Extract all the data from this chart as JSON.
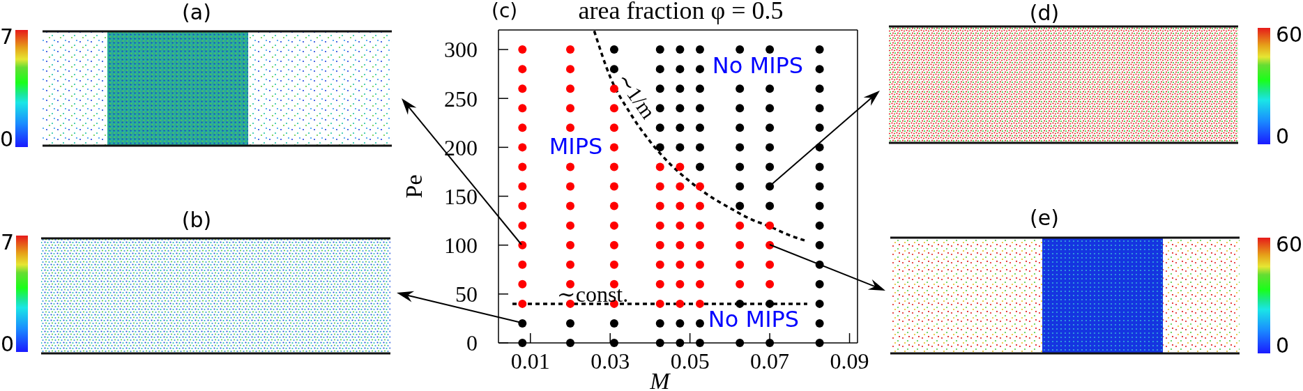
{
  "chart_data": [
    {
      "type": "other",
      "title": "(a)",
      "annotations": [
        "7",
        "0"
      ]
    },
    {
      "type": "other",
      "title": "(b)",
      "annotations": [
        "7",
        "0"
      ]
    },
    {
      "type": "scatter",
      "title": "area fraction φ = 0.5",
      "xlabel": "M",
      "ylabel": "Pe",
      "annotations": [
        "(c)",
        "MIPS",
        "No MIPS",
        "No MIPS",
        {
          "text": "∼const.",
          "x": 0.0256,
          "y": 40
        },
        {
          "text": "∼1/m",
          "x": 0.035,
          "y": 235
        }
      ],
      "xlim": [
        0.002,
        0.092
      ],
      "xticks": [
        0.01,
        0.03,
        0.05,
        0.07,
        0.09
      ],
      "ylim": [
        0,
        320
      ],
      "yticks": [
        0,
        50,
        100,
        150,
        200,
        250,
        300
      ],
      "marker": "circle",
      "series": [
        {
          "color": "#ff0000",
          "x": [
            0.008,
            0.008,
            0.008,
            0.008,
            0.008,
            0.008,
            0.008,
            0.008,
            0.008,
            0.008,
            0.008,
            0.008,
            0.008,
            0.008,
            0.02,
            0.02,
            0.02,
            0.02,
            0.02,
            0.02,
            0.02,
            0.02,
            0.02,
            0.02,
            0.02,
            0.02,
            0.02,
            0.031,
            0.031,
            0.031,
            0.031,
            0.031,
            0.031,
            0.031,
            0.031,
            0.031,
            0.031,
            0.031,
            0.031,
            0.0425,
            0.0425,
            0.0425,
            0.0425,
            0.0425,
            0.0425,
            0.0425,
            0.0425,
            0.0475,
            0.0475,
            0.0475,
            0.0475,
            0.0475,
            0.0475,
            0.0475,
            0.0475,
            0.0525,
            0.0525,
            0.0525,
            0.0525,
            0.0525,
            0.0525,
            0.0525,
            0.0625,
            0.0625,
            0.0625,
            0.0625,
            0.07,
            0.07,
            0.07,
            0.07
          ],
          "values": [
            40,
            60,
            80,
            100,
            120,
            140,
            160,
            180,
            200,
            220,
            240,
            260,
            280,
            300,
            40,
            60,
            80,
            100,
            120,
            140,
            160,
            180,
            220,
            240,
            260,
            280,
            300,
            40,
            60,
            80,
            100,
            120,
            140,
            160,
            180,
            200,
            220,
            240,
            260,
            40,
            60,
            80,
            100,
            120,
            140,
            160,
            180,
            40,
            60,
            80,
            100,
            120,
            140,
            160,
            180,
            40,
            60,
            80,
            100,
            120,
            140,
            160,
            60,
            80,
            100,
            120,
            60,
            80,
            100,
            120
          ]
        },
        {
          "color": "#000000",
          "x": [
            0.008,
            0.008,
            0.02,
            0.02,
            0.031,
            0.031,
            0.031,
            0.031,
            0.0425,
            0.0425,
            0.0425,
            0.0425,
            0.0425,
            0.0425,
            0.0425,
            0.0425,
            0.0475,
            0.0475,
            0.0475,
            0.0475,
            0.0475,
            0.0475,
            0.0475,
            0.0475,
            0.0525,
            0.0525,
            0.0525,
            0.0525,
            0.0525,
            0.0525,
            0.0525,
            0.0525,
            0.0525,
            0.0625,
            0.0625,
            0.0625,
            0.0625,
            0.0625,
            0.0625,
            0.0625,
            0.0625,
            0.0625,
            0.0625,
            0.07,
            0.07,
            0.07,
            0.07,
            0.07,
            0.07,
            0.07,
            0.07,
            0.07,
            0.07,
            0.0825,
            0.0825,
            0.0825,
            0.0825,
            0.0825,
            0.0825,
            0.0825,
            0.0825,
            0.0825,
            0.0825,
            0.0825,
            0.0825,
            0.0825,
            0.0825,
            0.0825,
            0.0825
          ],
          "values": [
            0,
            20,
            0,
            20,
            0,
            20,
            280,
            300,
            0,
            20,
            200,
            220,
            240,
            260,
            280,
            300,
            0,
            20,
            200,
            220,
            240,
            260,
            280,
            300,
            0,
            20,
            180,
            200,
            220,
            240,
            260,
            280,
            300,
            0,
            40,
            140,
            160,
            180,
            200,
            220,
            240,
            260,
            300,
            0,
            40,
            140,
            160,
            180,
            200,
            220,
            240,
            260,
            300,
            0,
            20,
            40,
            60,
            80,
            100,
            120,
            140,
            160,
            180,
            200,
            220,
            240,
            260,
            280,
            300
          ]
        },
        {
          "type": "line",
          "color": "#000000",
          "line_style": "dashed",
          "marker": "none",
          "x": [
            0.026,
            0.03,
            0.035,
            0.04,
            0.045,
            0.05,
            0.055,
            0.06,
            0.065,
            0.07,
            0.075,
            0.0794
          ],
          "values": [
            319,
            272,
            235,
            206,
            183,
            165,
            150,
            138,
            127,
            119,
            110,
            104
          ]
        },
        {
          "type": "line",
          "color": "#000000",
          "line_style": "dashed",
          "marker": "none",
          "x": [
            0.0055,
            0.0794
          ],
          "values": [
            40,
            40
          ]
        }
      ]
    },
    {
      "type": "other",
      "title": "(d)",
      "annotations": [
        "60",
        "0"
      ]
    },
    {
      "type": "other",
      "title": "(e)",
      "annotations": [
        "60",
        "0"
      ]
    }
  ]
}
